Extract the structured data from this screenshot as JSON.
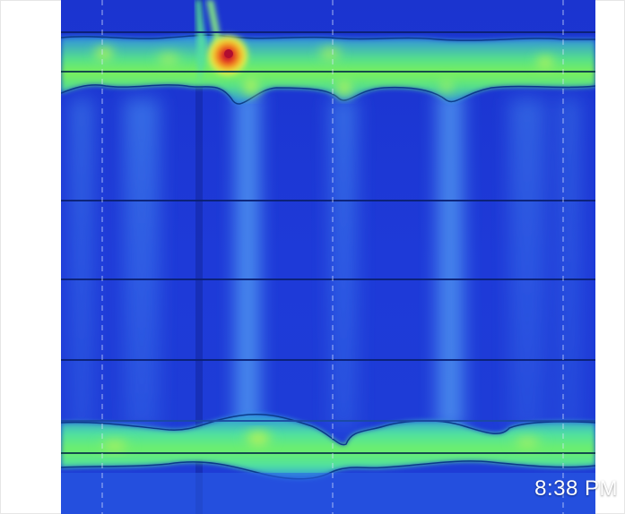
{
  "photo_viewer": {
    "timestamp": "8:38 PM"
  },
  "image": {
    "subject": "spectrogram-photo",
    "colors": {
      "background": "#ffffff",
      "deep_blue": "#1c33d0",
      "mid_blue": "#2f5af0",
      "light_blue": "#4f8ff4",
      "cyan": "#3fd6c8",
      "green": "#58f070",
      "yellow": "#e8f24a",
      "red": "#e02020"
    }
  }
}
